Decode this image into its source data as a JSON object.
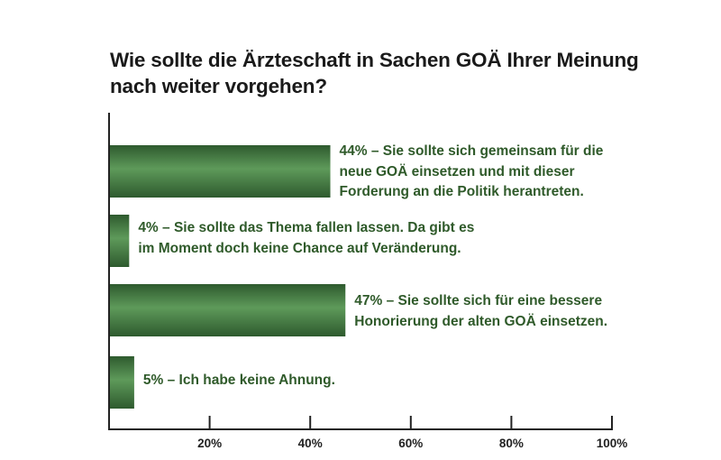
{
  "title_lines": [
    "Wie sollte die Ärzteschaft in Sachen GOÄ Ihrer Meinung",
    "nach weiter vorgehen?"
  ],
  "colors": {
    "bar_dark": "#2e5a2e",
    "bar_light": "#5e9a5a",
    "label_text": "#2f5a2a",
    "axis": "#222222"
  },
  "chart_data": {
    "type": "bar",
    "orientation": "horizontal",
    "title": "Wie sollte die Ärzteschaft in Sachen GOÄ Ihrer Meinung nach weiter vorgehen?",
    "xlim": [
      0,
      100
    ],
    "x_ticks": [
      "20%",
      "40%",
      "60%",
      "80%",
      "100%"
    ],
    "x_tick_values": [
      20,
      40,
      60,
      80,
      100
    ],
    "grid": false,
    "bars": [
      {
        "value": 44,
        "label_lines": [
          "44% – Sie sollte sich gemeinsam für die",
          "neue GOÄ einsetzen und mit dieser",
          "Forderung an die Politik herantreten."
        ]
      },
      {
        "value": 4,
        "label_lines": [
          "4% – Sie sollte das Thema fallen lassen. Da gibt es",
          "im Moment doch keine Chance auf Veränderung."
        ]
      },
      {
        "value": 47,
        "label_lines": [
          "47% – Sie sollte sich für eine bessere",
          "Honorierung der alten GOÄ einsetzen."
        ]
      },
      {
        "value": 5,
        "label_lines": [
          "5% – Ich habe keine Ahnung."
        ]
      }
    ]
  }
}
